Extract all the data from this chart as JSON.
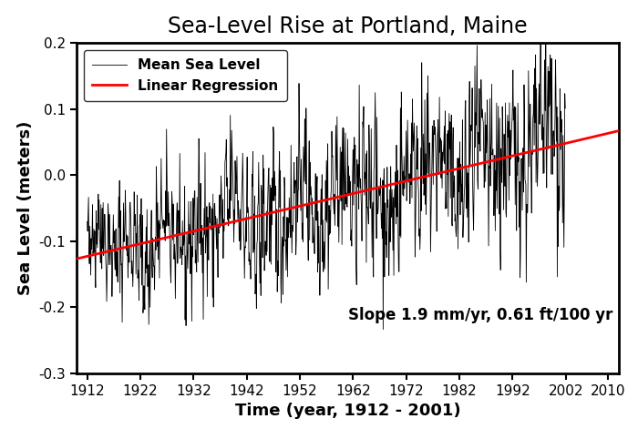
{
  "title": "Sea-Level Rise at Portland, Maine",
  "xlabel": "Time (year, 1912 - 2001)",
  "ylabel": "Sea Level (meters)",
  "xlim": [
    1910,
    2012
  ],
  "ylim": [
    -0.3,
    0.2
  ],
  "xticks": [
    1912,
    1922,
    1932,
    1942,
    1952,
    1962,
    1972,
    1982,
    1992,
    2002,
    2010
  ],
  "yticks": [
    -0.3,
    -0.2,
    -0.1,
    0.0,
    0.1,
    0.2
  ],
  "year_start": 1912,
  "year_end": 2001,
  "slope_m_per_yr": 0.0019,
  "intercept_at_1912": -0.123,
  "noise_amplitude_early": 0.038,
  "noise_amplitude_late": 0.065,
  "regression_color": "#ff0000",
  "data_color": "#000000",
  "annotation_text": "Slope 1.9 mm/yr, 0.61 ft/100 yr",
  "annotation_fontsize": 12,
  "legend_entries": [
    "Mean Sea Level",
    "Linear Regression"
  ],
  "title_fontsize": 17,
  "label_fontsize": 13,
  "tick_fontsize": 11,
  "figsize": [
    7.0,
    4.71
  ],
  "dpi": 100,
  "seed": 42
}
